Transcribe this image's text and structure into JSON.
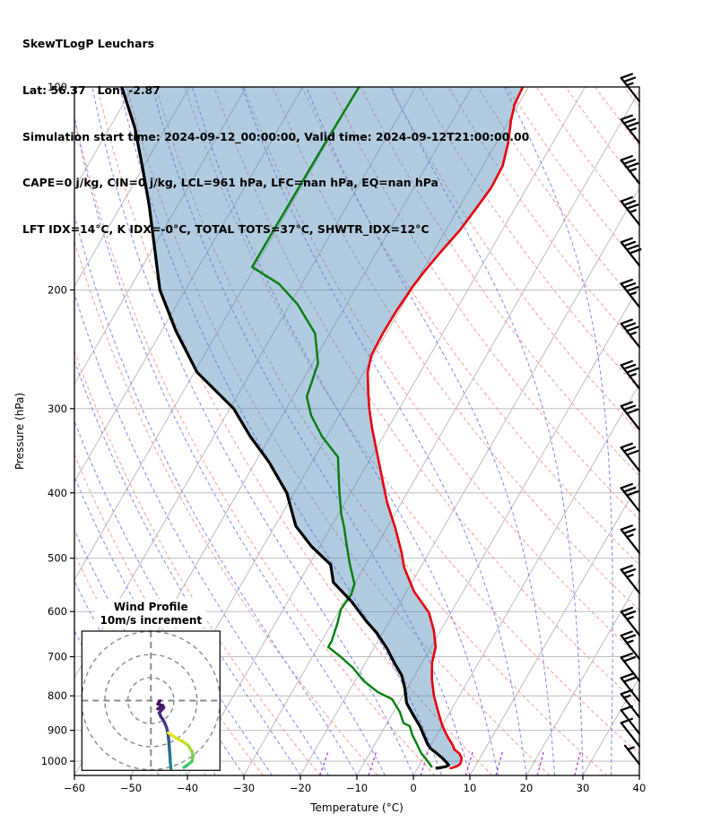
{
  "header": {
    "lines": [
      "SkewTLogP Leuchars",
      "Lat: 56.37   Lon: -2.87",
      "Simulation start time: 2024-09-12_00:00:00, Valid time: 2024-09-12T21:00:00.00",
      "CAPE=0 j/kg, CIN=0 j/kg, LCL=961 hPa, LFC=nan hPa, EQ=nan hPa",
      "LFT IDX=14°C, K IDX=-0°C, TOTAL TOTS=37°C, SHWTR_IDX=12°C"
    ]
  },
  "axes": {
    "x": {
      "label": "Temperature (°C)",
      "tick_values": [
        -60,
        -50,
        -40,
        -30,
        -20,
        -10,
        0,
        10,
        20,
        30,
        40
      ],
      "tick_labels": [
        "−60",
        "−50",
        "−40",
        "−30",
        "−20",
        "−10",
        "0",
        "10",
        "20",
        "30",
        "40"
      ]
    },
    "y": {
      "label": "Pressure (hPa)",
      "tick_values": [
        100,
        200,
        300,
        400,
        500,
        600,
        700,
        800,
        900,
        1000
      ],
      "tick_labels": [
        "100",
        "200",
        "300",
        "400",
        "500",
        "600",
        "700",
        "800",
        "900",
        "1000"
      ]
    }
  },
  "chart_data": {
    "type": "skewt-logp",
    "pressure_range_hpa": [
      100,
      1050
    ],
    "temperature_range_c": [
      -60,
      40
    ],
    "skew_rotation_deg": 30,
    "profiles": {
      "temperature_c": [
        [
          100,
          -51
        ],
        [
          106,
          -50.7
        ],
        [
          112,
          -49.7
        ],
        [
          121,
          -47.9
        ],
        [
          131,
          -46.5
        ],
        [
          141,
          -46.3
        ],
        [
          152,
          -46.9
        ],
        [
          163,
          -47.5
        ],
        [
          176,
          -48.7
        ],
        [
          188,
          -49.6
        ],
        [
          198,
          -50.1
        ],
        [
          215,
          -50.5
        ],
        [
          232,
          -50.6
        ],
        [
          250,
          -50.4
        ],
        [
          265,
          -49.3
        ],
        [
          286,
          -46.9
        ],
        [
          300,
          -45.3
        ],
        [
          320,
          -42.9
        ],
        [
          343,
          -40.1
        ],
        [
          375,
          -36.5
        ],
        [
          413,
          -32.6
        ],
        [
          450,
          -28.6
        ],
        [
          490,
          -24.9
        ],
        [
          516,
          -22.9
        ],
        [
          560,
          -18.7
        ],
        [
          602,
          -13.9
        ],
        [
          640,
          -11.2
        ],
        [
          677,
          -9.2
        ],
        [
          715,
          -8.2
        ],
        [
          755,
          -6.6
        ],
        [
          800,
          -4.5
        ],
        [
          845,
          -2.1
        ],
        [
          887,
          0.1
        ],
        [
          920,
          2.1
        ],
        [
          947,
          3.9
        ],
        [
          961,
          4.6
        ],
        [
          974,
          5.9
        ],
        [
          988,
          6.7
        ],
        [
          1000,
          7
        ],
        [
          1010,
          7.1
        ],
        [
          1017,
          6.8
        ],
        [
          1022,
          6.2
        ],
        [
          1025,
          5.7
        ]
      ],
      "dewpoint_c": [
        [
          100,
          -80
        ],
        [
          125,
          -80.3
        ],
        [
          150,
          -80.4
        ],
        [
          172,
          -80.5
        ],
        [
          185,
          -80.5
        ],
        [
          196,
          -74
        ],
        [
          210,
          -68.7
        ],
        [
          232,
          -62.6
        ],
        [
          257,
          -59
        ],
        [
          288,
          -57.6
        ],
        [
          307,
          -54.9
        ],
        [
          330,
          -50.8
        ],
        [
          354,
          -45.9
        ],
        [
          396,
          -42.3
        ],
        [
          430,
          -39.5
        ],
        [
          448,
          -37.8
        ],
        [
          480,
          -35.2
        ],
        [
          511,
          -32.8
        ],
        [
          546,
          -30
        ],
        [
          566,
          -29.5
        ],
        [
          596,
          -29.8
        ],
        [
          624,
          -29
        ],
        [
          663,
          -28.2
        ],
        [
          677,
          -28.2
        ],
        [
          701,
          -24.9
        ],
        [
          727,
          -21.7
        ],
        [
          760,
          -18.5
        ],
        [
          790,
          -14.8
        ],
        [
          809,
          -11.6
        ],
        [
          845,
          -8.9
        ],
        [
          878,
          -7.1
        ],
        [
          887,
          -5.7
        ],
        [
          915,
          -4.3
        ],
        [
          943,
          -2.6
        ],
        [
          973,
          -0.9
        ],
        [
          995,
          0.7
        ],
        [
          1008,
          1.6
        ],
        [
          1016,
          2.1
        ],
        [
          1021,
          2.5
        ]
      ],
      "parcel_c": [
        [
          100,
          -122
        ],
        [
          115,
          -115.5
        ],
        [
          132,
          -110
        ],
        [
          150,
          -105
        ],
        [
          172,
          -100
        ],
        [
          200,
          -94.5
        ],
        [
          230,
          -87.5
        ],
        [
          265,
          -79.5
        ],
        [
          300,
          -69.3
        ],
        [
          330,
          -63.5
        ],
        [
          360,
          -57.6
        ],
        [
          400,
          -51.3
        ],
        [
          448,
          -46.3
        ],
        [
          480,
          -41.5
        ],
        [
          511,
          -36.2
        ],
        [
          543,
          -33.9
        ],
        [
          580,
          -28.7
        ],
        [
          620,
          -24.1
        ],
        [
          645,
          -21.1
        ],
        [
          680,
          -17.7
        ],
        [
          716,
          -14.8
        ],
        [
          746,
          -12.3
        ],
        [
          780,
          -10.4
        ],
        [
          820,
          -8.6
        ],
        [
          850,
          -6.5
        ],
        [
          887,
          -3.9
        ],
        [
          920,
          -2
        ],
        [
          945,
          -0.6
        ],
        [
          958,
          0.3
        ],
        [
          972,
          1.7
        ],
        [
          990,
          3.4
        ],
        [
          1005,
          4.6
        ],
        [
          1014,
          5.2
        ],
        [
          1019,
          4.8
        ],
        [
          1023,
          3.8
        ],
        [
          1025,
          3.2
        ]
      ]
    },
    "background": {
      "isobars_hpa": {
        "min": 200,
        "max": 1000,
        "step": 100
      },
      "isotherms_c": {
        "min": -120,
        "max": 40,
        "step": 10
      },
      "dry_adiabats_c": {
        "min": -40,
        "max": 200,
        "step": 10
      },
      "moist_adiabats_c": {
        "min": -45,
        "max": 35,
        "step": 5
      },
      "mixing_ratio_g_kg": [
        1,
        2,
        4,
        7,
        10,
        16,
        24
      ]
    },
    "wind_barbs": {
      "direction_from": "NW",
      "levels_hpa": [
        105,
        121,
        139,
        160,
        184,
        212,
        243,
        280,
        322,
        371,
        426,
        491,
        563,
        650,
        705,
        760,
        815,
        861,
        910,
        950,
        1010
      ],
      "speeds_kt": [
        25,
        35,
        35,
        35,
        40,
        35,
        35,
        35,
        30,
        30,
        30,
        25,
        25,
        25,
        25,
        20,
        20,
        15,
        10,
        10,
        5
      ]
    },
    "hodograph": {
      "title_line1": "Wind Profile",
      "title_line2": "10m/s increment",
      "ring_increment_ms": 10,
      "rings_ms": [
        10,
        20,
        30
      ],
      "blob_uv_ms": [
        [
          3.9,
          -0.1
        ],
        [
          3,
          -1.5
        ],
        [
          5.2,
          -2.2
        ],
        [
          3,
          -3.6
        ],
        [
          5.6,
          -3
        ],
        [
          3.6,
          -5.3
        ],
        [
          4.3,
          -6.9
        ],
        [
          5.4,
          -8.5
        ]
      ],
      "blob_colors": [
        "#46085c",
        "#470d60",
        "#471365",
        "#461969",
        "#451f6d",
        "#442571",
        "#422a74"
      ],
      "trace_a_uv_ms": [
        [
          5.4,
          -8.5
        ],
        [
          6.2,
          -10.2
        ],
        [
          6.8,
          -11.7
        ],
        [
          7.3,
          -13.7
        ],
        [
          7.7,
          -16.9
        ],
        [
          7.9,
          -19.5
        ],
        [
          8.1,
          -22
        ],
        [
          8.3,
          -24.4
        ],
        [
          8.4,
          -26.7
        ],
        [
          8.7,
          -29.6
        ]
      ],
      "trace_a_colors": [
        "#3f3183",
        "#3a3b8b",
        "#35458d",
        "#30508e",
        "#2c5a8e",
        "#28648e",
        "#256e8e",
        "#22788e",
        "#1f828c"
      ],
      "trace_b_uv_ms": [
        [
          7.6,
          -14
        ],
        [
          9.1,
          -15
        ],
        [
          11,
          -16.3
        ],
        [
          13.6,
          -17.6
        ],
        [
          16.2,
          -19.5
        ],
        [
          17.8,
          -22.1
        ],
        [
          18.3,
          -24
        ],
        [
          17.8,
          -26.4
        ],
        [
          15.6,
          -28.2
        ],
        [
          14.3,
          -29
        ]
      ],
      "trace_b_colors": [
        "#f8e621",
        "#eae51a",
        "#d8e219",
        "#c2df22",
        "#a8db34",
        "#8bd446",
        "#6ece58",
        "#52c569",
        "#3fbc73"
      ]
    },
    "colors": {
      "temperature": "#e8000b",
      "dewpoint": "#007f0e",
      "parcel": "#000000",
      "shade": "rgba(70,130,180,0.42)",
      "grid_grey": "#b5b5b5",
      "dry_adiabat": "#f49b9b",
      "moist_adiabat": "#8585ee",
      "mixing_ratio": "#a040d0",
      "barb": "#000000",
      "hodo_grid": "#888888"
    }
  }
}
